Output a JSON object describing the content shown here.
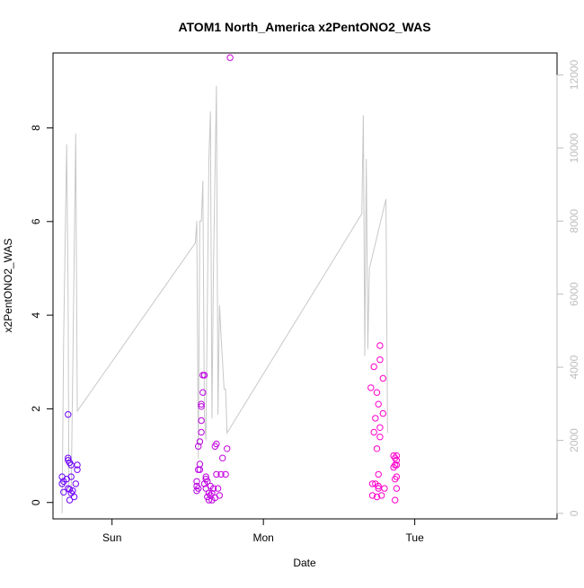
{
  "chart_data": {
    "type": "scatter",
    "title": "ATOM1 North_America x2PentONO2_WAS",
    "xlabel": "Date",
    "ylabel": "x2PentONO2_WAS",
    "ylim": [
      -0.35,
      9.6
    ],
    "y2lim": [
      -150,
      12600
    ],
    "xlim": [
      -0.39,
      2.94
    ],
    "x_ticks": [
      {
        "value": 0,
        "label": "Sun"
      },
      {
        "value": 1,
        "label": "Mon"
      },
      {
        "value": 2,
        "label": "Tue"
      }
    ],
    "y_ticks": [
      0,
      2,
      4,
      6,
      8
    ],
    "y2_ticks": [
      0,
      2000,
      4000,
      6000,
      8000,
      10000,
      12000
    ],
    "grid": false,
    "legend": "none",
    "colors": {
      "axis": "#000000",
      "secondary_axis": "#bebebe",
      "altitude_line": "#c8c8c8",
      "point_early": "#6a00ff",
      "point_late": "#ff00cc"
    },
    "series": [
      {
        "axis": "left",
        "style": "points",
        "points": [
          {
            "x": -0.33,
            "y": 0.55
          },
          {
            "x": -0.33,
            "y": 0.4
          },
          {
            "x": -0.32,
            "y": 0.45
          },
          {
            "x": -0.32,
            "y": 0.22
          },
          {
            "x": -0.3,
            "y": 0.5
          },
          {
            "x": -0.29,
            "y": 0.95
          },
          {
            "x": -0.29,
            "y": 0.9
          },
          {
            "x": -0.29,
            "y": 1.88
          },
          {
            "x": -0.29,
            "y": 0.3
          },
          {
            "x": -0.28,
            "y": 0.85
          },
          {
            "x": -0.28,
            "y": 0.28
          },
          {
            "x": -0.28,
            "y": 0.05
          },
          {
            "x": -0.27,
            "y": 0.55
          },
          {
            "x": -0.27,
            "y": 0.8
          },
          {
            "x": -0.27,
            "y": 0.2
          },
          {
            "x": -0.26,
            "y": 0.25
          },
          {
            "x": -0.25,
            "y": 0.12
          },
          {
            "x": -0.24,
            "y": 0.4
          },
          {
            "x": -0.23,
            "y": 0.8
          },
          {
            "x": -0.23,
            "y": 0.7
          },
          {
            "x": 0.56,
            "y": 0.45
          },
          {
            "x": 0.56,
            "y": 0.35
          },
          {
            "x": 0.56,
            "y": 0.25
          },
          {
            "x": 0.57,
            "y": 0.3
          },
          {
            "x": 0.57,
            "y": 1.2
          },
          {
            "x": 0.57,
            "y": 0.7
          },
          {
            "x": 0.58,
            "y": 0.82
          },
          {
            "x": 0.58,
            "y": 1.3
          },
          {
            "x": 0.58,
            "y": 0.7
          },
          {
            "x": 0.59,
            "y": 1.5
          },
          {
            "x": 0.59,
            "y": 1.75
          },
          {
            "x": 0.59,
            "y": 2.05
          },
          {
            "x": 0.59,
            "y": 2.1
          },
          {
            "x": 0.6,
            "y": 2.35
          },
          {
            "x": 0.6,
            "y": 2.72
          },
          {
            "x": 0.61,
            "y": 2.72
          },
          {
            "x": 0.61,
            "y": 0.4
          },
          {
            "x": 0.62,
            "y": 0.55
          },
          {
            "x": 0.62,
            "y": 0.5
          },
          {
            "x": 0.62,
            "y": 0.3
          },
          {
            "x": 0.63,
            "y": 0.45
          },
          {
            "x": 0.63,
            "y": 0.12
          },
          {
            "x": 0.64,
            "y": 0.05
          },
          {
            "x": 0.64,
            "y": 0.2
          },
          {
            "x": 0.65,
            "y": 0.15
          },
          {
            "x": 0.65,
            "y": 0.35
          },
          {
            "x": 0.66,
            "y": 0.2
          },
          {
            "x": 0.66,
            "y": 0.05
          },
          {
            "x": 0.67,
            "y": 0.3
          },
          {
            "x": 0.68,
            "y": 0.1
          },
          {
            "x": 0.68,
            "y": 1.2
          },
          {
            "x": 0.69,
            "y": 1.25
          },
          {
            "x": 0.69,
            "y": 0.6
          },
          {
            "x": 0.7,
            "y": 0.3
          },
          {
            "x": 0.71,
            "y": 0.15
          },
          {
            "x": 0.72,
            "y": 0.6
          },
          {
            "x": 0.73,
            "y": 0.95
          },
          {
            "x": 0.75,
            "y": 0.6
          },
          {
            "x": 0.76,
            "y": 1.15
          },
          {
            "x": 0.78,
            "y": 9.5
          },
          {
            "x": 1.71,
            "y": 2.45
          },
          {
            "x": 1.72,
            "y": 0.4
          },
          {
            "x": 1.72,
            "y": 0.15
          },
          {
            "x": 1.73,
            "y": 2.9
          },
          {
            "x": 1.73,
            "y": 1.5
          },
          {
            "x": 1.74,
            "y": 1.8
          },
          {
            "x": 1.74,
            "y": 0.4
          },
          {
            "x": 1.75,
            "y": 2.35
          },
          {
            "x": 1.75,
            "y": 0.12
          },
          {
            "x": 1.75,
            "y": 1.15
          },
          {
            "x": 1.76,
            "y": 2.1
          },
          {
            "x": 1.76,
            "y": 0.35
          },
          {
            "x": 1.76,
            "y": 0.6
          },
          {
            "x": 1.76,
            "y": 0.3
          },
          {
            "x": 1.77,
            "y": 1.6
          },
          {
            "x": 1.77,
            "y": 3.05
          },
          {
            "x": 1.77,
            "y": 3.35
          },
          {
            "x": 1.77,
            "y": 1.4
          },
          {
            "x": 1.78,
            "y": 0.15
          },
          {
            "x": 1.79,
            "y": 2.65
          },
          {
            "x": 1.79,
            "y": 1.9
          },
          {
            "x": 1.8,
            "y": 0.3
          },
          {
            "x": 1.86,
            "y": 0.75
          },
          {
            "x": 1.86,
            "y": 1.0
          },
          {
            "x": 1.87,
            "y": 0.95
          },
          {
            "x": 1.87,
            "y": 0.8
          },
          {
            "x": 1.87,
            "y": 0.5
          },
          {
            "x": 1.87,
            "y": 0.05
          },
          {
            "x": 1.88,
            "y": 0.9
          },
          {
            "x": 1.88,
            "y": 1.0
          },
          {
            "x": 1.88,
            "y": 0.55
          },
          {
            "x": 1.88,
            "y": 0.8
          },
          {
            "x": 1.88,
            "y": 0.3
          }
        ]
      },
      {
        "axis": "right",
        "style": "line",
        "points": [
          {
            "x": -0.33,
            "y": 0
          },
          {
            "x": -0.32,
            "y": 4700
          },
          {
            "x": -0.3,
            "y": 10100
          },
          {
            "x": -0.29,
            "y": 6000
          },
          {
            "x": -0.285,
            "y": 700
          },
          {
            "x": -0.27,
            "y": 500
          },
          {
            "x": -0.24,
            "y": 10400
          },
          {
            "x": -0.23,
            "y": 2800
          },
          {
            "x": 0.55,
            "y": 7400
          },
          {
            "x": 0.56,
            "y": 8000
          },
          {
            "x": 0.57,
            "y": 1500
          },
          {
            "x": 0.58,
            "y": 8000
          },
          {
            "x": 0.59,
            "y": 8000
          },
          {
            "x": 0.6,
            "y": 9100
          },
          {
            "x": 0.61,
            "y": 2700
          },
          {
            "x": 0.62,
            "y": 2000
          },
          {
            "x": 0.64,
            "y": 9700
          },
          {
            "x": 0.65,
            "y": 11000
          },
          {
            "x": 0.66,
            "y": 2600
          },
          {
            "x": 0.67,
            "y": 6700
          },
          {
            "x": 0.69,
            "y": 11700
          },
          {
            "x": 0.7,
            "y": 2700
          },
          {
            "x": 0.71,
            "y": 5700
          },
          {
            "x": 0.72,
            "y": 4900
          },
          {
            "x": 0.74,
            "y": 3400
          },
          {
            "x": 0.75,
            "y": 3400
          },
          {
            "x": 0.76,
            "y": 2200
          },
          {
            "x": 1.65,
            "y": 8200
          },
          {
            "x": 1.66,
            "y": 10900
          },
          {
            "x": 1.67,
            "y": 4300
          },
          {
            "x": 1.68,
            "y": 9700
          },
          {
            "x": 1.69,
            "y": 4500
          },
          {
            "x": 1.7,
            "y": 6700
          },
          {
            "x": 1.81,
            "y": 8600
          },
          {
            "x": 1.82,
            "y": 2200
          }
        ]
      }
    ]
  }
}
